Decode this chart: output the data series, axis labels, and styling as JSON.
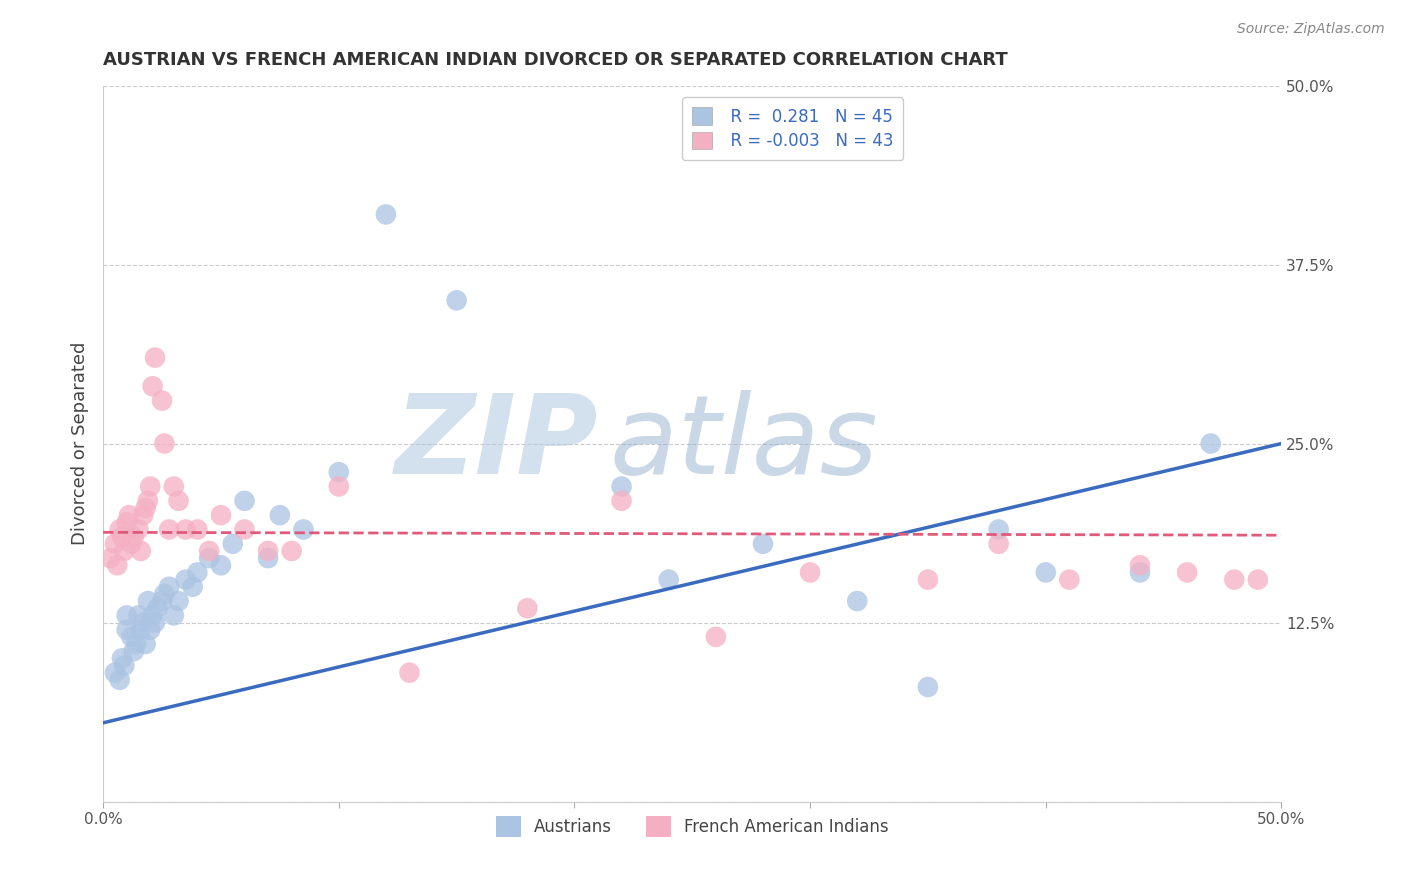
{
  "title": "AUSTRIAN VS FRENCH AMERICAN INDIAN DIVORCED OR SEPARATED CORRELATION CHART",
  "source": "Source: ZipAtlas.com",
  "ylabel": "Divorced or Separated",
  "xmin": 0.0,
  "xmax": 0.5,
  "ymin": 0.0,
  "ymax": 0.5,
  "legend_r1": "R =  0.281",
  "legend_n1": "N = 45",
  "legend_r2": "R = -0.003",
  "legend_n2": "N = 43",
  "blue_color": "#aac4e2",
  "pink_color": "#f5afc3",
  "blue_line_color": "#3a6bbf",
  "pink_line_color": "#e05a7a",
  "grid_color": "#cccccc",
  "watermark_zip": "ZIP",
  "watermark_atlas": "atlas",
  "watermark_color": "#c8d8ec",
  "label_austrians": "Austrians",
  "label_french": "French American Indians",
  "austrians_x": [
    0.005,
    0.007,
    0.008,
    0.009,
    0.01,
    0.01,
    0.012,
    0.013,
    0.014,
    0.015,
    0.016,
    0.017,
    0.018,
    0.019,
    0.02,
    0.021,
    0.022,
    0.023,
    0.025,
    0.026,
    0.028,
    0.03,
    0.032,
    0.035,
    0.038,
    0.04,
    0.045,
    0.05,
    0.055,
    0.06,
    0.07,
    0.075,
    0.085,
    0.1,
    0.12,
    0.15,
    0.22,
    0.24,
    0.28,
    0.32,
    0.35,
    0.38,
    0.4,
    0.44,
    0.47
  ],
  "austrians_y": [
    0.09,
    0.085,
    0.1,
    0.095,
    0.13,
    0.12,
    0.115,
    0.105,
    0.11,
    0.13,
    0.12,
    0.125,
    0.11,
    0.14,
    0.12,
    0.13,
    0.125,
    0.135,
    0.14,
    0.145,
    0.15,
    0.13,
    0.14,
    0.155,
    0.15,
    0.16,
    0.17,
    0.165,
    0.18,
    0.21,
    0.17,
    0.2,
    0.19,
    0.23,
    0.41,
    0.35,
    0.22,
    0.155,
    0.18,
    0.14,
    0.08,
    0.19,
    0.16,
    0.16,
    0.25
  ],
  "french_x": [
    0.003,
    0.005,
    0.006,
    0.007,
    0.008,
    0.009,
    0.01,
    0.011,
    0.012,
    0.013,
    0.015,
    0.016,
    0.017,
    0.018,
    0.019,
    0.02,
    0.021,
    0.022,
    0.025,
    0.026,
    0.028,
    0.03,
    0.032,
    0.035,
    0.04,
    0.045,
    0.05,
    0.06,
    0.07,
    0.08,
    0.1,
    0.13,
    0.18,
    0.22,
    0.26,
    0.3,
    0.35,
    0.38,
    0.41,
    0.44,
    0.46,
    0.48,
    0.49
  ],
  "french_y": [
    0.17,
    0.18,
    0.165,
    0.19,
    0.185,
    0.175,
    0.195,
    0.2,
    0.18,
    0.185,
    0.19,
    0.175,
    0.2,
    0.205,
    0.21,
    0.22,
    0.29,
    0.31,
    0.28,
    0.25,
    0.19,
    0.22,
    0.21,
    0.19,
    0.19,
    0.175,
    0.2,
    0.19,
    0.175,
    0.175,
    0.22,
    0.09,
    0.135,
    0.21,
    0.115,
    0.16,
    0.155,
    0.18,
    0.155,
    0.165,
    0.16,
    0.155,
    0.155
  ],
  "blue_line_x": [
    0.0,
    0.5
  ],
  "blue_line_y": [
    0.055,
    0.25
  ],
  "pink_line_x": [
    0.0,
    0.5
  ],
  "pink_line_y": [
    0.188,
    0.186
  ]
}
